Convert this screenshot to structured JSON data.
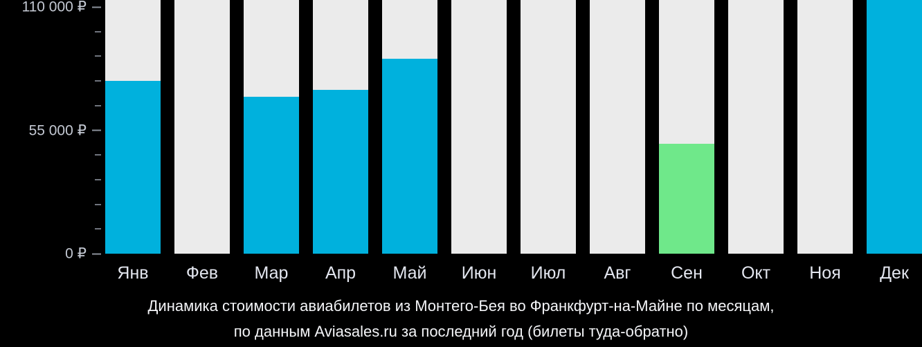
{
  "chart_data": {
    "type": "bar",
    "categories": [
      "Янв",
      "Фев",
      "Мар",
      "Апр",
      "Май",
      "Июн",
      "Июл",
      "Авг",
      "Сен",
      "Окт",
      "Ноя",
      "Дек"
    ],
    "values": [
      77000,
      null,
      70000,
      73000,
      87000,
      null,
      null,
      null,
      49000,
      null,
      null,
      113000
    ],
    "highlight_index": 8,
    "title": "Динамика стоимости авиабилетов из Монтего-Бея во Франкфурт-на-Майне по месяцам,",
    "subtitle": "по данным Aviasales.ru за последний год (билеты туда-обратно)",
    "xlabel": "",
    "ylabel": "",
    "ylim": [
      0,
      110000
    ],
    "yticks": [
      {
        "value": 110000,
        "label": "110 000 ₽"
      },
      {
        "value": 55000,
        "label": "55 000 ₽"
      },
      {
        "value": 0,
        "label": "0 ₽"
      }
    ],
    "minor_ticks": [
      99000,
      88000,
      77000,
      66000,
      44000,
      33000,
      22000,
      11000
    ],
    "grid": "off",
    "legend": "off",
    "currency": "₽"
  },
  "colors": {
    "background": "#000000",
    "bar": "#00b1dd",
    "highlight_bar": "#6fe88a",
    "track": "#ebebeb",
    "axis_text": "#c3c8d2",
    "month_text": "#e3e6ef",
    "caption_text": "#f4f5f8"
  }
}
